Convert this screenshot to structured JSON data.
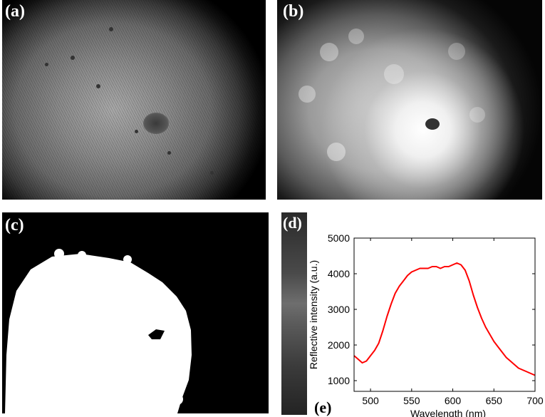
{
  "labels": {
    "a": "(a)",
    "b": "(b)",
    "c": "(c)",
    "d": "(d)",
    "e": "(e)"
  },
  "chart_data": {
    "type": "line",
    "xlabel": "Wavelength (nm)",
    "ylabel": "Reflective intensity (a.u.)",
    "xlim": [
      480,
      700
    ],
    "ylim": [
      700,
      5000
    ],
    "xticks": [
      500,
      550,
      600,
      650,
      700
    ],
    "yticks": [
      1000,
      2000,
      3000,
      4000,
      5000
    ],
    "grid": false,
    "series": [
      {
        "color": "#ff0000",
        "x": [
          480,
          485,
          490,
          495,
          500,
          505,
          510,
          515,
          520,
          525,
          530,
          535,
          540,
          545,
          550,
          555,
          560,
          565,
          570,
          575,
          580,
          585,
          590,
          595,
          600,
          605,
          610,
          615,
          620,
          625,
          630,
          635,
          640,
          645,
          650,
          655,
          660,
          665,
          670,
          675,
          680,
          685,
          690,
          695,
          700
        ],
        "y": [
          1700,
          1600,
          1500,
          1550,
          1700,
          1850,
          2050,
          2400,
          2800,
          3150,
          3450,
          3650,
          3800,
          3950,
          4050,
          4100,
          4150,
          4150,
          4150,
          4200,
          4200,
          4150,
          4200,
          4200,
          4250,
          4300,
          4250,
          4100,
          3800,
          3400,
          3050,
          2750,
          2500,
          2300,
          2100,
          1950,
          1800,
          1650,
          1550,
          1450,
          1350,
          1300,
          1250,
          1200,
          1150
        ]
      }
    ]
  }
}
